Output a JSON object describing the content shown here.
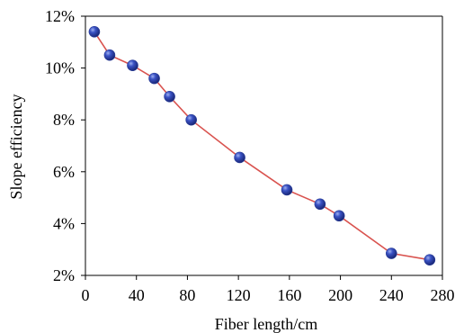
{
  "chart_data": {
    "type": "line",
    "xlabel": "Fiber length/cm",
    "ylabel": "Slope efficiency",
    "xlim": [
      0,
      280
    ],
    "ylim": [
      2,
      12
    ],
    "x_ticks": [
      "0",
      "40",
      "80",
      "120",
      "160",
      "200",
      "240",
      "280"
    ],
    "x_tick_values": [
      0,
      40,
      80,
      120,
      160,
      200,
      240,
      280
    ],
    "y_ticks": [
      "2%",
      "4%",
      "6%",
      "8%",
      "10%",
      "12%"
    ],
    "y_tick_values": [
      2,
      4,
      6,
      8,
      10,
      12
    ],
    "grid": false,
    "series": [
      {
        "x": [
          7,
          19,
          37,
          54,
          66,
          83,
          121,
          158,
          184,
          199,
          240,
          270
        ],
        "y": [
          11.4,
          10.5,
          10.1,
          9.6,
          8.9,
          8.0,
          6.55,
          5.3,
          4.75,
          4.3,
          2.85,
          2.6
        ],
        "line_color": "#d9534f",
        "marker_color": "#2b3f9a"
      }
    ]
  }
}
